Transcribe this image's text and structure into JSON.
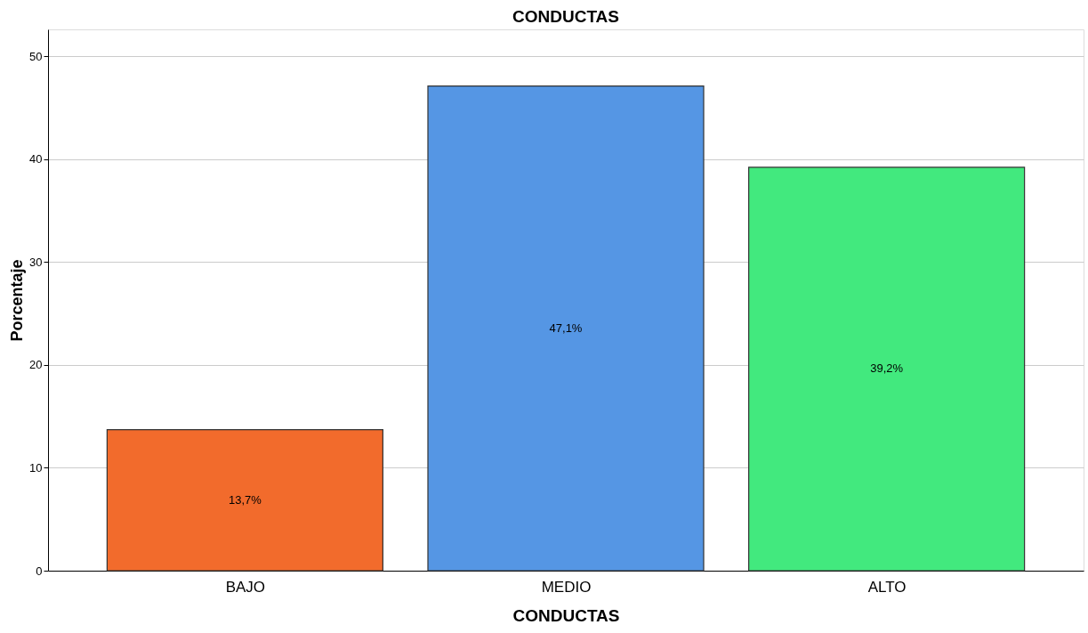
{
  "chart_data": {
    "type": "bar",
    "title": "CONDUCTAS",
    "xlabel": "CONDUCTAS",
    "ylabel": "Porcentaje",
    "categories": [
      "BAJO",
      "MEDIO",
      "ALTO"
    ],
    "values": [
      13.7,
      47.1,
      39.2
    ],
    "colors": [
      "#f26b2c",
      "#5596e4",
      "#42e97e"
    ],
    "value_labels": [
      "13,7%",
      "47,1%",
      "39,2%"
    ],
    "ylim": [
      0,
      52.6
    ],
    "yticks": [
      0,
      10,
      20,
      30,
      40,
      50
    ],
    "grid": "y",
    "legend": false
  }
}
